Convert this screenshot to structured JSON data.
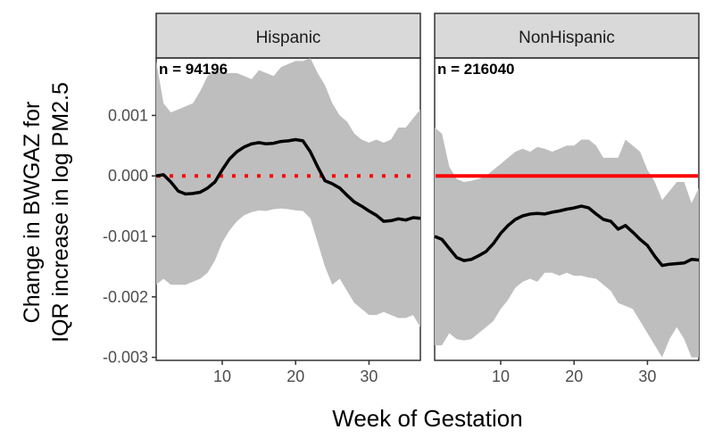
{
  "chart_data": {
    "type": "line",
    "xlabel": "Week of Gestation",
    "ylabel": [
      "Change in BWGAZ for",
      "IQR increase in log PM2.5"
    ],
    "xlim": [
      1,
      37
    ],
    "ylim": [
      -0.00305,
      0.00195
    ],
    "xticks": [
      10,
      20,
      30
    ],
    "xtick_labels": [
      "10",
      "20",
      "30"
    ],
    "yticks": [
      0.001,
      0.0,
      -0.001,
      -0.002,
      -0.003
    ],
    "ytick_labels": [
      "0.001",
      "0.000",
      "-0.001",
      "-0.002",
      "-0.003"
    ],
    "grid": false,
    "colors": {
      "estimate": "#000000",
      "ribbon": "#bebebe",
      "reference": "#ff0000",
      "strip": "#d9d9d9"
    },
    "panels": [
      {
        "name": "Hispanic",
        "annotation": "n = 94196",
        "reference_style": "dotted",
        "x": [
          1,
          2,
          3,
          4,
          5,
          6,
          7,
          8,
          9,
          10,
          11,
          12,
          13,
          14,
          15,
          16,
          17,
          18,
          19,
          20,
          21,
          22,
          23,
          24,
          25,
          26,
          27,
          28,
          29,
          30,
          31,
          32,
          33,
          34,
          35,
          36,
          37
        ],
        "estimate": [
          0.0,
          2e-05,
          -0.0001,
          -0.00025,
          -0.0003,
          -0.00029,
          -0.00027,
          -0.0002,
          -0.0001,
          0.0001,
          0.00028,
          0.0004,
          0.00048,
          0.00053,
          0.00055,
          0.00053,
          0.00054,
          0.00057,
          0.00058,
          0.0006,
          0.00058,
          0.0004,
          0.00015,
          -8e-05,
          -0.00013,
          -0.0002,
          -0.00032,
          -0.00043,
          -0.0005,
          -0.00058,
          -0.00065,
          -0.00075,
          -0.00074,
          -0.00071,
          -0.00073,
          -0.00069,
          -0.0007
        ],
        "upper": [
          0.0019,
          0.0012,
          0.00105,
          0.0011,
          0.00115,
          0.0012,
          0.0014,
          0.00165,
          0.00175,
          0.0017,
          0.0017,
          0.0017,
          0.00165,
          0.0016,
          0.00175,
          0.0017,
          0.00165,
          0.0018,
          0.00185,
          0.0019,
          0.0019,
          0.00195,
          0.0017,
          0.0015,
          0.0012,
          0.001,
          0.0009,
          0.0007,
          0.0006,
          0.00055,
          0.0006,
          0.00055,
          0.0006,
          0.0008,
          0.0008,
          0.00095,
          0.0011
        ],
        "lower": [
          -0.0018,
          -0.0017,
          -0.0018,
          -0.0018,
          -0.0018,
          -0.00175,
          -0.0017,
          -0.0016,
          -0.0014,
          -0.0011,
          -0.0009,
          -0.00075,
          -0.00065,
          -0.0006,
          -0.00057,
          -0.00058,
          -0.00055,
          -0.00054,
          -0.00055,
          -0.00057,
          -0.00058,
          -0.0007,
          -0.0011,
          -0.0015,
          -0.0018,
          -0.0017,
          -0.0019,
          -0.0021,
          -0.0022,
          -0.0023,
          -0.0023,
          -0.00225,
          -0.0023,
          -0.00235,
          -0.00235,
          -0.0023,
          -0.0025
        ]
      },
      {
        "name": "NonHispanic",
        "annotation": "n = 216040",
        "reference_style": "solid",
        "x": [
          1,
          2,
          3,
          4,
          5,
          6,
          7,
          8,
          9,
          10,
          11,
          12,
          13,
          14,
          15,
          16,
          17,
          18,
          19,
          20,
          21,
          22,
          23,
          24,
          25,
          26,
          27,
          28,
          29,
          30,
          31,
          32,
          33,
          34,
          35,
          36,
          37
        ],
        "estimate": [
          -0.001,
          -0.00105,
          -0.0012,
          -0.00135,
          -0.0014,
          -0.00138,
          -0.00132,
          -0.00125,
          -0.00112,
          -0.00095,
          -0.00082,
          -0.00072,
          -0.00066,
          -0.00063,
          -0.00062,
          -0.00063,
          -0.0006,
          -0.00058,
          -0.00055,
          -0.00053,
          -0.0005,
          -0.00053,
          -0.00063,
          -0.00072,
          -0.00075,
          -0.00088,
          -0.00082,
          -0.00093,
          -0.00105,
          -0.00115,
          -0.00133,
          -0.00148,
          -0.00146,
          -0.00145,
          -0.00144,
          -0.00138,
          -0.00139
        ],
        "upper": [
          0.0008,
          0.0007,
          0.00015,
          -5e-05,
          -0.0001,
          -8e-05,
          -5e-05,
          0.0,
          0.0001,
          0.0002,
          0.0003,
          0.0004,
          0.00045,
          0.0004,
          0.00048,
          0.00045,
          0.0004,
          0.00045,
          0.0005,
          0.0005,
          0.0006,
          0.0006,
          0.0005,
          0.0003,
          0.0003,
          0.0003,
          0.0006,
          0.0005,
          0.0004,
          0.0001,
          -0.0001,
          -0.0004,
          -0.00025,
          -0.0001,
          -0.0001,
          -0.00045,
          -0.0002
        ],
        "lower": [
          -0.0028,
          -0.0028,
          -0.0026,
          -0.0027,
          -0.00272,
          -0.0027,
          -0.0026,
          -0.0025,
          -0.0024,
          -0.0022,
          -0.00205,
          -0.00185,
          -0.00175,
          -0.0017,
          -0.00175,
          -0.0016,
          -0.0016,
          -0.00165,
          -0.0016,
          -0.00165,
          -0.00165,
          -0.00168,
          -0.0017,
          -0.0018,
          -0.0019,
          -0.0021,
          -0.00215,
          -0.0022,
          -0.0024,
          -0.0026,
          -0.0028,
          -0.003,
          -0.0027,
          -0.0025,
          -0.0027,
          -0.003,
          -0.003
        ]
      }
    ]
  }
}
